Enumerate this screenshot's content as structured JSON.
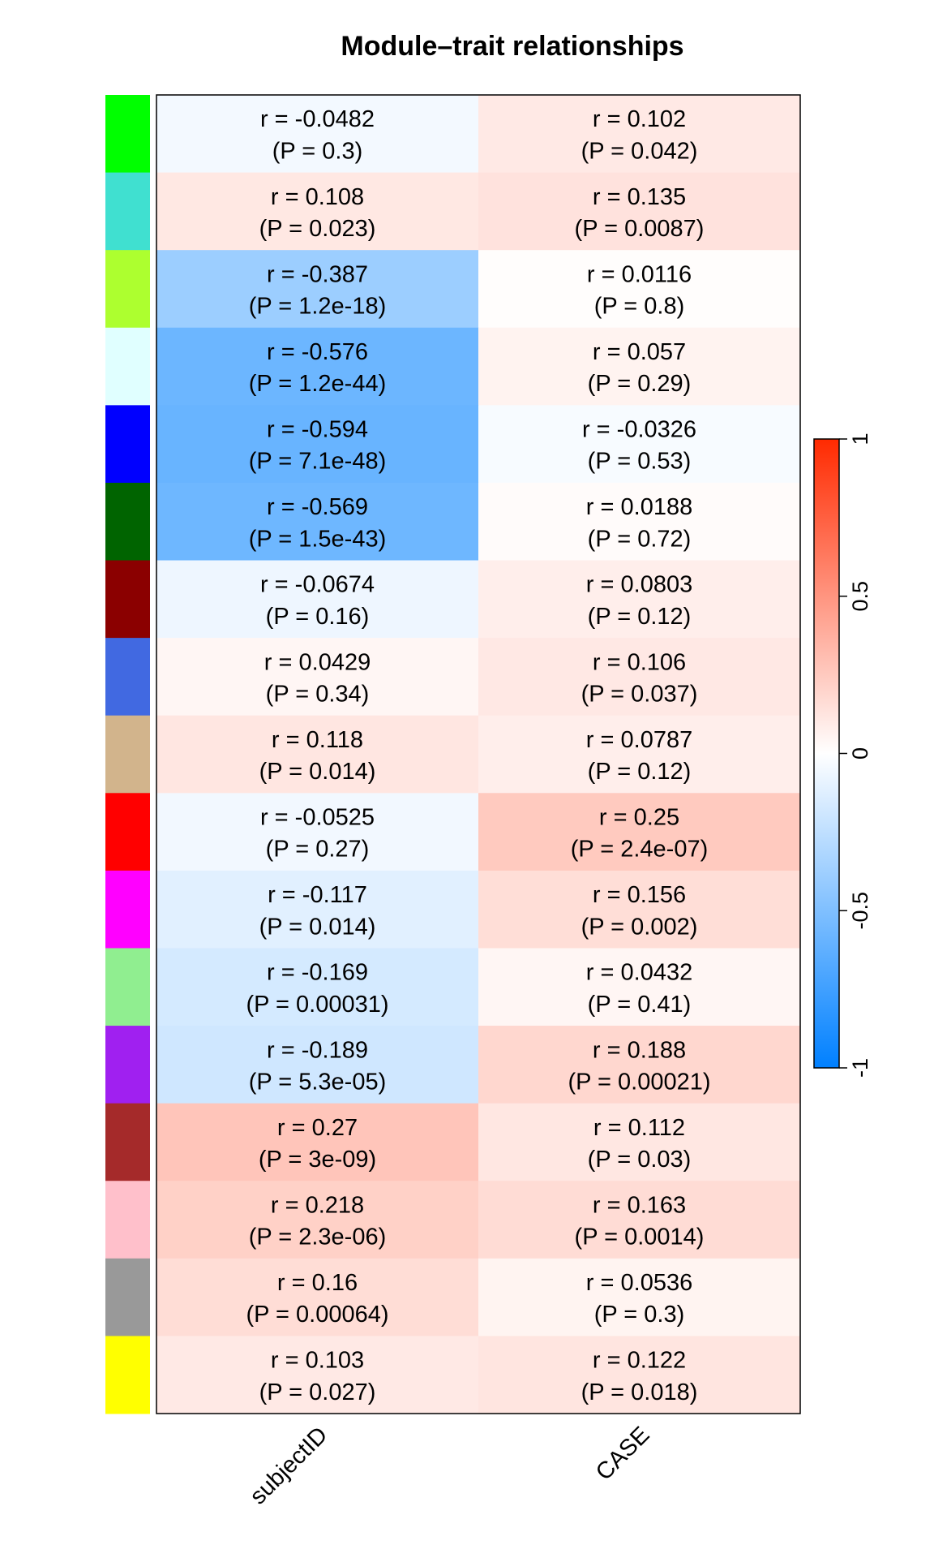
{
  "chart_data": {
    "type": "heatmap",
    "title": "Module–trait relationships",
    "columns": [
      "subjectID",
      "CASE"
    ],
    "rows": [
      {
        "module_color": "#00ff00",
        "cells": [
          {
            "r": -0.0482,
            "r_text": "r = -0.0482",
            "p_text": "(P = 0.3)"
          },
          {
            "r": 0.102,
            "r_text": "r = 0.102",
            "p_text": "(P = 0.042)"
          }
        ]
      },
      {
        "module_color": "#40e0d0",
        "cells": [
          {
            "r": 0.108,
            "r_text": "r = 0.108",
            "p_text": "(P = 0.023)"
          },
          {
            "r": 0.135,
            "r_text": "r = 0.135",
            "p_text": "(P = 0.0087)"
          }
        ]
      },
      {
        "module_color": "#adff2f",
        "cells": [
          {
            "r": -0.387,
            "r_text": "r = -0.387",
            "p_text": "(P = 1.2e-18)"
          },
          {
            "r": 0.0116,
            "r_text": "r = 0.0116",
            "p_text": "(P = 0.8)"
          }
        ]
      },
      {
        "module_color": "#e0ffff",
        "cells": [
          {
            "r": -0.576,
            "r_text": "r = -0.576",
            "p_text": "(P = 1.2e-44)"
          },
          {
            "r": 0.057,
            "r_text": "r = 0.057",
            "p_text": "(P = 0.29)"
          }
        ]
      },
      {
        "module_color": "#0000ff",
        "cells": [
          {
            "r": -0.594,
            "r_text": "r = -0.594",
            "p_text": "(P = 7.1e-48)"
          },
          {
            "r": -0.0326,
            "r_text": "r = -0.0326",
            "p_text": "(P = 0.53)"
          }
        ]
      },
      {
        "module_color": "#006400",
        "cells": [
          {
            "r": -0.569,
            "r_text": "r = -0.569",
            "p_text": "(P = 1.5e-43)"
          },
          {
            "r": 0.0188,
            "r_text": "r = 0.0188",
            "p_text": "(P = 0.72)"
          }
        ]
      },
      {
        "module_color": "#8b0000",
        "cells": [
          {
            "r": -0.0674,
            "r_text": "r = -0.0674",
            "p_text": "(P = 0.16)"
          },
          {
            "r": 0.0803,
            "r_text": "r = 0.0803",
            "p_text": "(P = 0.12)"
          }
        ]
      },
      {
        "module_color": "#4169e1",
        "cells": [
          {
            "r": 0.0429,
            "r_text": "r = 0.0429",
            "p_text": "(P = 0.34)"
          },
          {
            "r": 0.106,
            "r_text": "r = 0.106",
            "p_text": "(P = 0.037)"
          }
        ]
      },
      {
        "module_color": "#d2b48c",
        "cells": [
          {
            "r": 0.118,
            "r_text": "r = 0.118",
            "p_text": "(P = 0.014)"
          },
          {
            "r": 0.0787,
            "r_text": "r = 0.0787",
            "p_text": "(P = 0.12)"
          }
        ]
      },
      {
        "module_color": "#ff0000",
        "cells": [
          {
            "r": -0.0525,
            "r_text": "r = -0.0525",
            "p_text": "(P = 0.27)"
          },
          {
            "r": 0.25,
            "r_text": "r = 0.25",
            "p_text": "(P = 2.4e-07)"
          }
        ]
      },
      {
        "module_color": "#ff00ff",
        "cells": [
          {
            "r": -0.117,
            "r_text": "r = -0.117",
            "p_text": "(P = 0.014)"
          },
          {
            "r": 0.156,
            "r_text": "r = 0.156",
            "p_text": "(P = 0.002)"
          }
        ]
      },
      {
        "module_color": "#90ee90",
        "cells": [
          {
            "r": -0.169,
            "r_text": "r = -0.169",
            "p_text": "(P = 0.00031)"
          },
          {
            "r": 0.0432,
            "r_text": "r = 0.0432",
            "p_text": "(P = 0.41)"
          }
        ]
      },
      {
        "module_color": "#a020f0",
        "cells": [
          {
            "r": -0.189,
            "r_text": "r = -0.189",
            "p_text": "(P = 5.3e-05)"
          },
          {
            "r": 0.188,
            "r_text": "r = 0.188",
            "p_text": "(P = 0.00021)"
          }
        ]
      },
      {
        "module_color": "#a52a2a",
        "cells": [
          {
            "r": 0.27,
            "r_text": "r = 0.27",
            "p_text": "(P = 3e-09)"
          },
          {
            "r": 0.112,
            "r_text": "r = 0.112",
            "p_text": "(P = 0.03)"
          }
        ]
      },
      {
        "module_color": "#ffc0cb",
        "cells": [
          {
            "r": 0.218,
            "r_text": "r = 0.218",
            "p_text": "(P = 2.3e-06)"
          },
          {
            "r": 0.163,
            "r_text": "r = 0.163",
            "p_text": "(P = 0.0014)"
          }
        ]
      },
      {
        "module_color": "#999999",
        "cells": [
          {
            "r": 0.16,
            "r_text": "r = 0.16",
            "p_text": "(P = 0.00064)"
          },
          {
            "r": 0.0536,
            "r_text": "r = 0.0536",
            "p_text": "(P = 0.3)"
          }
        ]
      },
      {
        "module_color": "#ffff00",
        "cells": [
          {
            "r": 0.103,
            "r_text": "r = 0.103",
            "p_text": "(P = 0.027)"
          },
          {
            "r": 0.122,
            "r_text": "r = 0.122",
            "p_text": "(P = 0.018)"
          }
        ]
      }
    ],
    "color_scale": {
      "min": -1,
      "max": 1,
      "ticks": [
        -1,
        -0.5,
        0,
        0.5,
        1
      ],
      "tick_labels": [
        "-1",
        "-0.5",
        "0",
        "0.5",
        "1"
      ],
      "low_color": "#0080ff",
      "mid_color": "#ffffff",
      "high_color": "#ff2a00"
    }
  }
}
